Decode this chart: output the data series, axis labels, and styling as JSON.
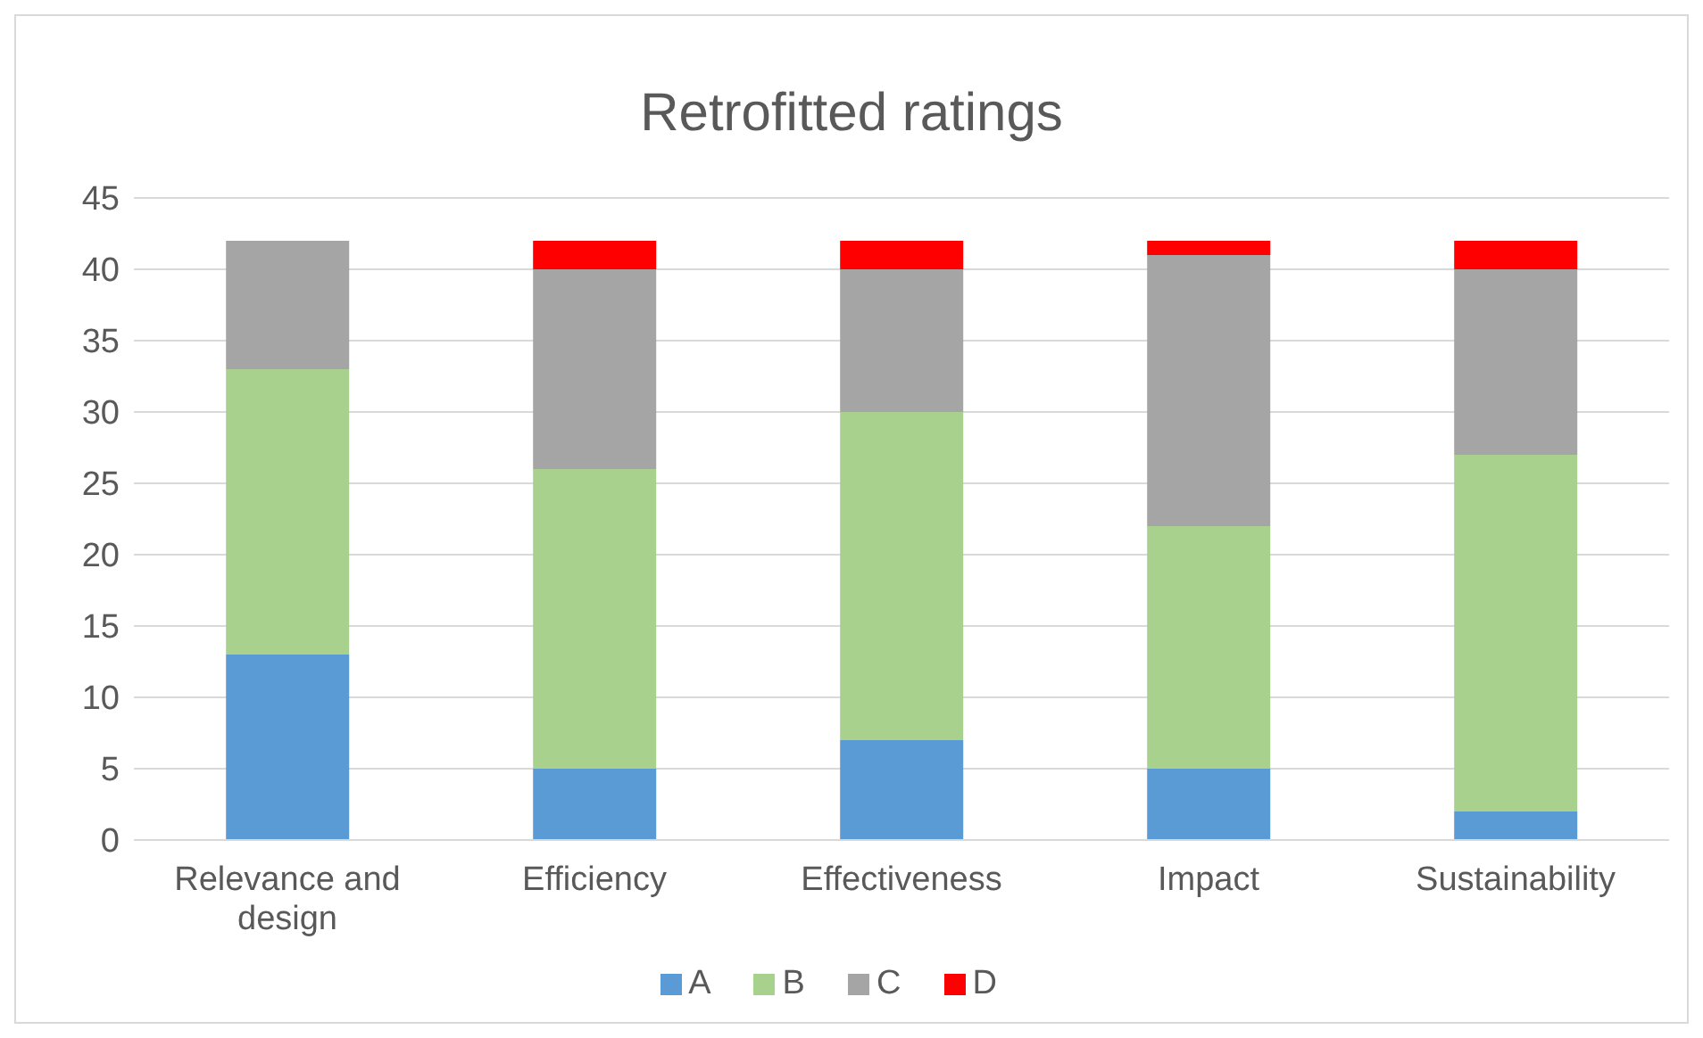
{
  "chart_data": {
    "type": "bar",
    "title": "Retrofitted ratings",
    "stacked": true,
    "categories": [
      "Relevance and design",
      "Efficiency",
      "Effectiveness",
      "Impact",
      "Sustainability"
    ],
    "series": [
      {
        "name": "A",
        "color": "#5b9bd5",
        "values": [
          13,
          5,
          7,
          5,
          2
        ]
      },
      {
        "name": "B",
        "color": "#a9d18e",
        "values": [
          20,
          21,
          23,
          17,
          25
        ]
      },
      {
        "name": "C",
        "color": "#a5a5a5",
        "values": [
          9,
          14,
          10,
          19,
          13
        ]
      },
      {
        "name": "D",
        "color": "#ff0000",
        "values": [
          0,
          2,
          2,
          1,
          2
        ]
      }
    ],
    "ylim": [
      0,
      45
    ],
    "yticks": [
      0,
      5,
      10,
      15,
      20,
      25,
      30,
      35,
      40,
      45
    ],
    "grid": "y",
    "legend": "bottom"
  }
}
